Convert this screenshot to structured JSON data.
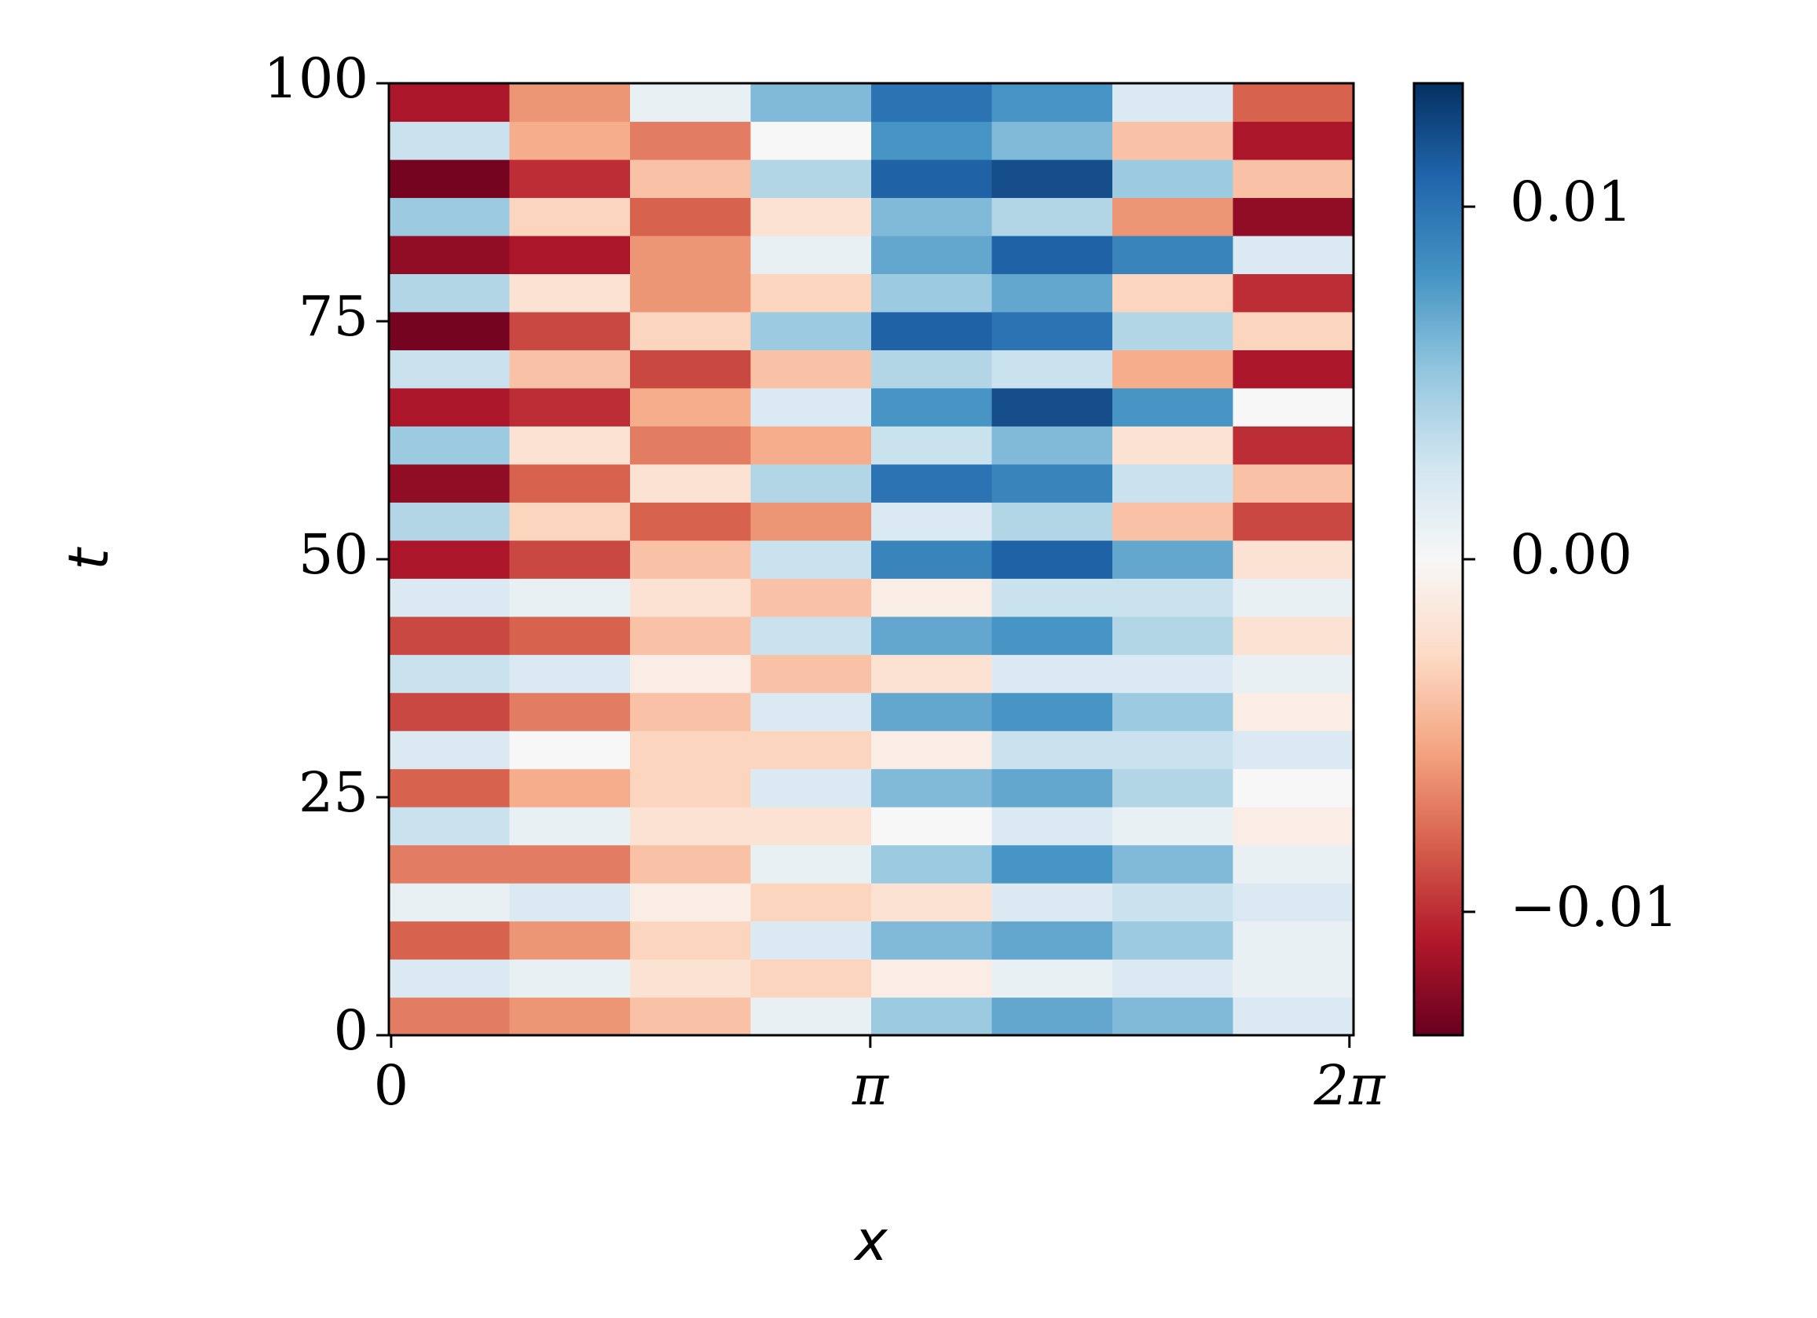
{
  "chart_data": {
    "type": "heatmap",
    "xlabel": "x",
    "ylabel": "t",
    "xlim": [
      -0.015,
      6.31
    ],
    "ylim": [
      0,
      100
    ],
    "xticks": [
      0,
      {
        "value": 3.1416,
        "label": "π"
      },
      {
        "value": 6.2832,
        "label": "2π"
      }
    ],
    "yticks": [
      0,
      25,
      50,
      75,
      100
    ],
    "clim": [
      -0.0135,
      0.0135
    ],
    "cticks": [
      {
        "value": -0.01,
        "label": "−0.01"
      },
      {
        "value": 0,
        "label": "0.00"
      },
      {
        "value": 0.01,
        "label": "0.01"
      }
    ],
    "colormap": [
      "#67001f",
      "#b2182b",
      "#d6604d",
      "#f4a582",
      "#fddbc7",
      "#f7f7f7",
      "#d1e5f0",
      "#92c5de",
      "#4393c3",
      "#2166ac",
      "#053061"
    ],
    "z": [
      [
        -0.007,
        -0.006,
        -0.004,
        0.001,
        0.005,
        0.007,
        0.006,
        0.002
      ],
      [
        0.002,
        0.001,
        -0.002,
        -0.003,
        -0.001,
        0.001,
        0.002,
        0.001
      ],
      [
        -0.008,
        -0.006,
        -0.003,
        0.002,
        0.006,
        0.007,
        0.005,
        0.001
      ],
      [
        0.001,
        0.002,
        -0.001,
        -0.003,
        -0.002,
        0.002,
        0.003,
        0.002
      ],
      [
        -0.007,
        -0.007,
        -0.004,
        0.001,
        0.005,
        0.008,
        0.006,
        0.001
      ],
      [
        0.003,
        0.001,
        -0.002,
        -0.002,
        0.0,
        0.002,
        0.001,
        -0.001
      ],
      [
        -0.008,
        -0.005,
        -0.003,
        0.002,
        0.006,
        0.007,
        0.004,
        0.0
      ],
      [
        0.002,
        0.0,
        -0.003,
        -0.003,
        -0.001,
        0.003,
        0.003,
        0.002
      ],
      [
        -0.009,
        -0.007,
        -0.004,
        0.002,
        0.007,
        0.008,
        0.005,
        -0.001
      ],
      [
        0.003,
        0.002,
        -0.001,
        -0.004,
        -0.002,
        0.002,
        0.002,
        0.001
      ],
      [
        -0.009,
        -0.008,
        -0.004,
        0.003,
        0.007,
        0.008,
        0.004,
        -0.002
      ],
      [
        0.002,
        0.001,
        -0.002,
        -0.004,
        -0.001,
        0.003,
        0.003,
        0.001
      ],
      [
        -0.011,
        -0.009,
        -0.004,
        0.003,
        0.009,
        0.011,
        0.007,
        -0.002
      ],
      [
        0.004,
        -0.003,
        -0.008,
        -0.006,
        0.002,
        0.004,
        -0.004,
        -0.009
      ],
      [
        -0.012,
        -0.008,
        -0.002,
        0.004,
        0.01,
        0.009,
        0.003,
        -0.004
      ],
      [
        0.005,
        -0.002,
        -0.007,
        -0.005,
        0.003,
        0.006,
        -0.002,
        -0.01
      ],
      [
        -0.011,
        -0.01,
        -0.005,
        0.002,
        0.008,
        0.012,
        0.008,
        0.0
      ],
      [
        0.003,
        -0.004,
        -0.009,
        -0.004,
        0.004,
        0.003,
        -0.005,
        -0.011
      ],
      [
        -0.013,
        -0.009,
        -0.003,
        0.005,
        0.011,
        0.01,
        0.004,
        -0.003
      ],
      [
        0.004,
        -0.002,
        -0.006,
        -0.003,
        0.005,
        0.007,
        -0.003,
        -0.01
      ],
      [
        -0.012,
        -0.011,
        -0.006,
        0.001,
        0.007,
        0.011,
        0.009,
        0.002
      ],
      [
        0.005,
        -0.003,
        -0.008,
        -0.002,
        0.006,
        0.004,
        -0.006,
        -0.012
      ],
      [
        -0.013,
        -0.01,
        -0.004,
        0.004,
        0.011,
        0.012,
        0.005,
        -0.004
      ],
      [
        0.003,
        -0.005,
        -0.007,
        0.0,
        0.008,
        0.006,
        -0.004,
        -0.011
      ],
      [
        -0.011,
        -0.006,
        0.001,
        0.006,
        0.01,
        0.008,
        0.002,
        -0.008
      ]
    ]
  }
}
